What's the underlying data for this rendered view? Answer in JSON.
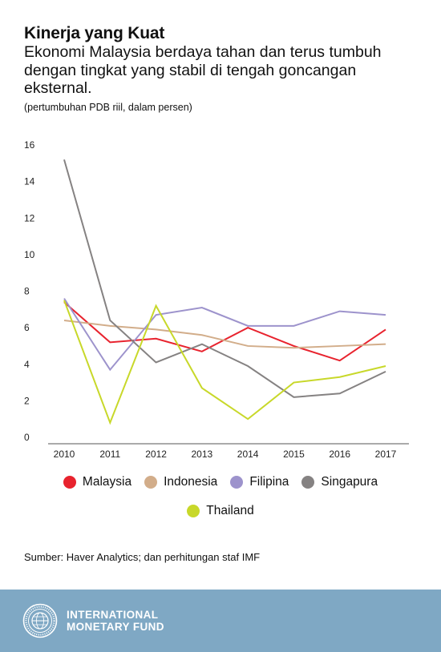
{
  "header": {
    "title": "Kinerja yang Kuat",
    "subtitle": "Ekonomi Malaysia berdaya tahan dan terus tumbuh dengan tingkat yang stabil di tengah goncangan eksternal.",
    "unit_note": "(pertumbuhan PDB riil, dalam persen)"
  },
  "chart_data": {
    "type": "line",
    "title": "Kinerja yang Kuat",
    "subtitle": "Ekonomi Malaysia berdaya tahan dan terus tumbuh dengan tingkat yang stabil di tengah goncangan eksternal.",
    "xlabel": "",
    "ylabel": "(pertumbuhan PDB riil, dalam persen)",
    "x": [
      "2010",
      "2011",
      "2012",
      "2013",
      "2014",
      "2015",
      "2016",
      "2017"
    ],
    "ylim": [
      0,
      16
    ],
    "yticks": [
      0,
      2,
      4,
      6,
      8,
      10,
      12,
      14,
      16
    ],
    "grid": false,
    "legend_position": "bottom",
    "series": [
      {
        "name": "Malaysia",
        "color": "#e8232e",
        "values": [
          7.4,
          5.2,
          5.4,
          4.7,
          6.0,
          5.0,
          4.2,
          5.9
        ]
      },
      {
        "name": "Indonesia",
        "color": "#d2ad8a",
        "values": [
          6.4,
          6.1,
          5.9,
          5.6,
          5.0,
          4.9,
          5.0,
          5.1
        ]
      },
      {
        "name": "Filipina",
        "color": "#9d93cc",
        "values": [
          7.6,
          3.7,
          6.7,
          7.1,
          6.1,
          6.1,
          6.9,
          6.7
        ]
      },
      {
        "name": "Singapura",
        "color": "#858282",
        "values": [
          15.2,
          6.4,
          4.1,
          5.1,
          3.9,
          2.2,
          2.4,
          3.6
        ]
      },
      {
        "name": "Thailand",
        "color": "#c8d82a",
        "values": [
          7.5,
          0.8,
          7.2,
          2.7,
          1.0,
          3.0,
          3.3,
          3.9
        ]
      }
    ]
  },
  "legend": {
    "row1": [
      {
        "label": "Malaysia",
        "color": "#e8232e"
      },
      {
        "label": "Indonesia",
        "color": "#d2ad8a"
      },
      {
        "label": "Filipina",
        "color": "#9d93cc"
      },
      {
        "label": "Singapura",
        "color": "#858282"
      }
    ],
    "row2": [
      {
        "label": "Thailand",
        "color": "#c8d82a"
      }
    ]
  },
  "source": "Sumber: Haver Analytics; dan perhitungan staf IMF",
  "footer": {
    "org_line1": "INTERNATIONAL",
    "org_line2": "MONETARY FUND",
    "logo_icon": "imf-seal-icon",
    "background": "#7fa8c4"
  }
}
